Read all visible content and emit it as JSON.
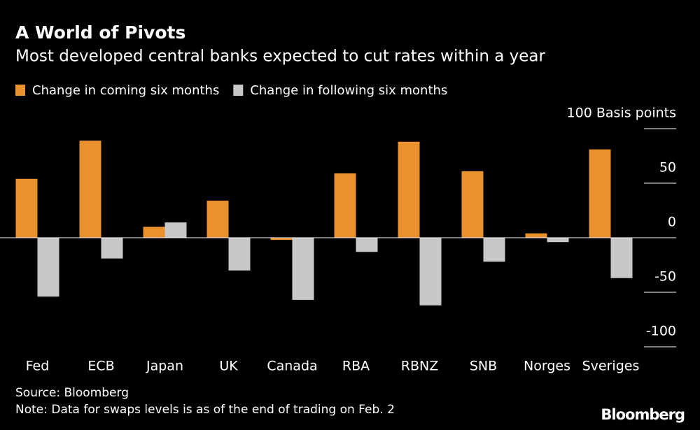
{
  "chart_data": {
    "type": "bar",
    "title": "A World of Pivots",
    "subtitle": "Most developed central banks expected to cut rates within a year",
    "categories": [
      "Fed",
      "ECB",
      "Japan",
      "UK",
      "Canada",
      "RBA",
      "RBNZ",
      "SNB",
      "Norges",
      "Sveriges"
    ],
    "series": [
      {
        "name": "Change in coming six months",
        "color": "#e8912d",
        "values": [
          54,
          89,
          10,
          34,
          -2,
          59,
          88,
          61,
          4,
          81
        ]
      },
      {
        "name": "Change in following six months",
        "color": "#c8c8c8",
        "values": [
          -54,
          -19,
          14,
          -30,
          -57,
          -13,
          -62,
          -22,
          -4,
          -37
        ]
      }
    ],
    "ylim": [
      -100,
      100
    ],
    "yticks": [
      -100,
      -50,
      0,
      50,
      {
        "value": 100,
        "label": "100 Basis points"
      }
    ],
    "grid": true,
    "source": "Source: Bloomberg",
    "note": "Note: Data for swaps levels is as of the end of trading on Feb. 2",
    "brand": "Bloomberg"
  }
}
